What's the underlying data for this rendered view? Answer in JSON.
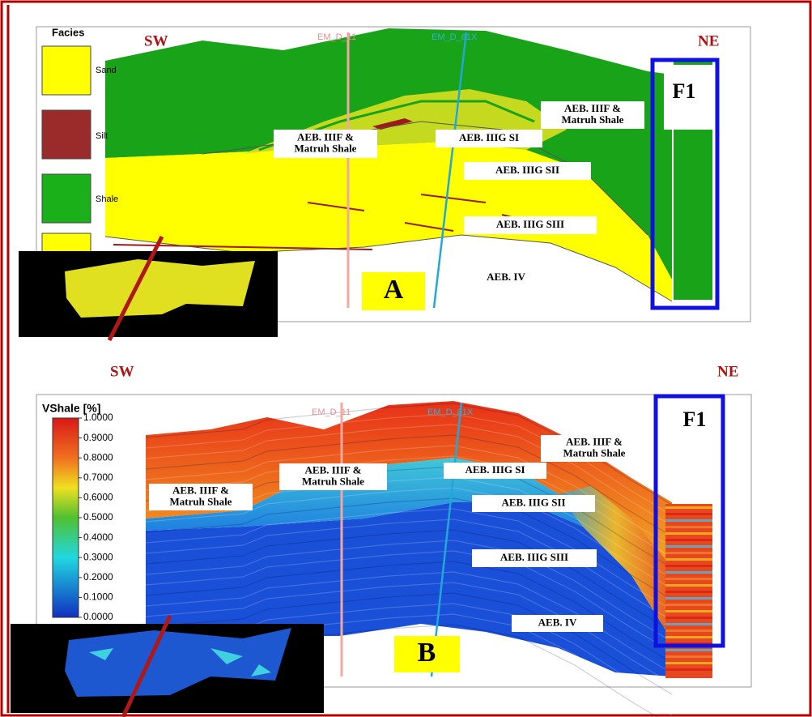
{
  "panel_a": {
    "sw": "SW",
    "ne": "NE",
    "legend_title": "Facies",
    "legend": [
      "Sand",
      "Silt",
      "Shale"
    ],
    "wells": [
      "EM_D_11",
      "EM_D_61X"
    ],
    "zones": [
      [
        "AEB. IIIF &",
        "Matruh Shale"
      ],
      [
        "AEB. IIIF &",
        "Matruh Shale"
      ],
      [
        "AEB. IIIG SI"
      ],
      [
        "AEB. IIIG SII"
      ],
      [
        "AEB. IIIG SIII"
      ],
      [
        "AEB. IV"
      ]
    ],
    "fault": "F1",
    "label": "A"
  },
  "panel_b": {
    "sw": "SW",
    "ne": "NE",
    "colorbar_title": "VShale [%]",
    "colorbar_ticks": [
      "1.0000",
      "0.9000",
      "0.8000",
      "0.7000",
      "0.6000",
      "0.5000",
      "0.4000",
      "0.3000",
      "0.2000",
      "0.1000",
      "0.0000"
    ],
    "wells": [
      "EM_D_11",
      "EM_D_61X"
    ],
    "zones": [
      [
        "AEB. IIIF &",
        "Matruh Shale"
      ],
      [
        "AEB. IIIF &",
        "Matruh Shale"
      ],
      [
        "AEB. IIIF &",
        "Matruh Shale"
      ],
      [
        "AEB. IIIG SI"
      ],
      [
        "AEB. IIIG SII"
      ],
      [
        "AEB. IIIG SIII"
      ],
      [
        "AEB. IV"
      ]
    ],
    "fault": "F1",
    "label": "B"
  }
}
